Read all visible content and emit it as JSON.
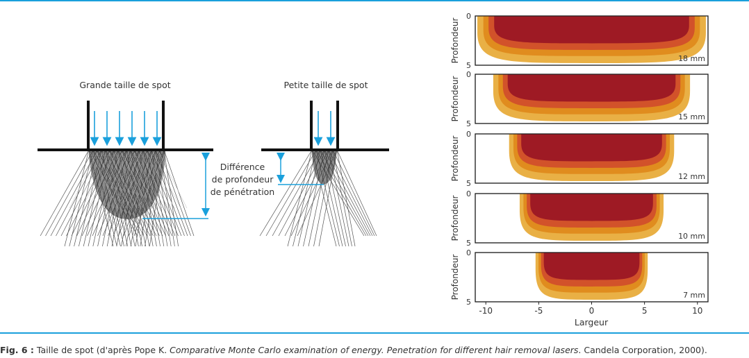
{
  "left_diagram": {
    "large_spot_label": "Grande taille de spot",
    "small_spot_label": "Petite taille de spot",
    "difference_label": [
      "Différence",
      "de profondeur",
      "de pénétration"
    ]
  },
  "right_panels": {
    "ylabel": "Profondeur",
    "xlabel": "Largeur",
    "y_ticks": [
      "0",
      "5"
    ],
    "x_ticks": [
      "-10",
      "-5",
      "0",
      "5",
      "10"
    ],
    "x_range": [
      -11,
      11
    ],
    "y_range": [
      0,
      5
    ],
    "colors": [
      "#e9b045",
      "#e08c1e",
      "#d2522a",
      "#9e1a24"
    ],
    "panels": [
      {
        "label": "18 mm",
        "spot_mm": 18
      },
      {
        "label": "15 mm",
        "spot_mm": 15
      },
      {
        "label": "12 mm",
        "spot_mm": 12
      },
      {
        "label": "10 mm",
        "spot_mm": 10
      },
      {
        "label": "7 mm",
        "spot_mm": 7
      }
    ]
  },
  "caption": {
    "fig_label": "Fig. 6 :",
    "text_before": " Taille de spot (d'après Pope K. ",
    "italic": "Comparative Monte Carlo examination of energy. Penetration for different hair removal lasers",
    "text_after": ". Candela Corporation, 2000)."
  }
}
